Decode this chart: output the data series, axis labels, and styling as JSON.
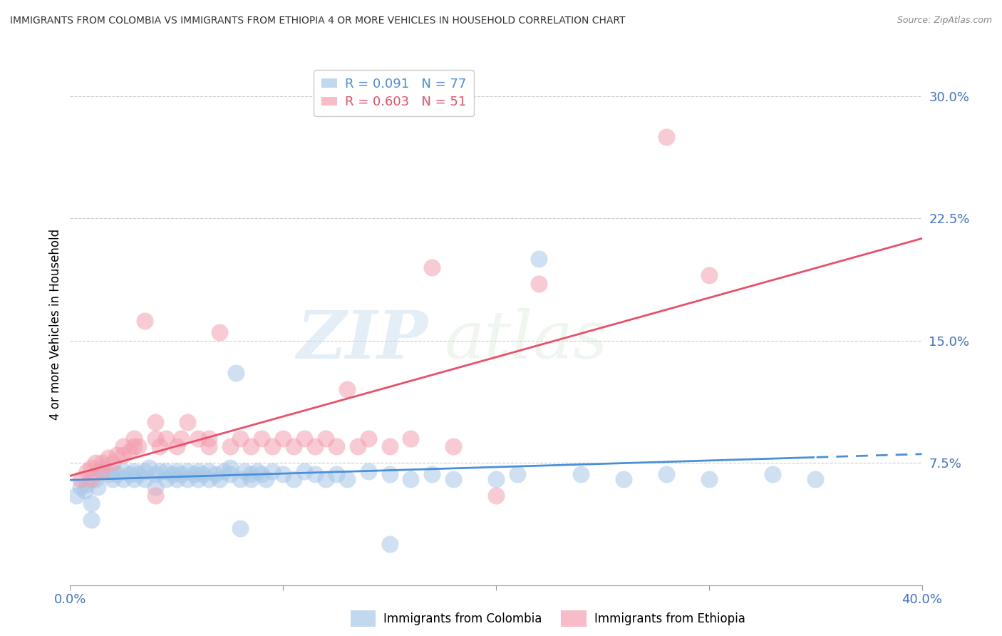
{
  "title": "IMMIGRANTS FROM COLOMBIA VS IMMIGRANTS FROM ETHIOPIA 4 OR MORE VEHICLES IN HOUSEHOLD CORRELATION CHART",
  "source": "Source: ZipAtlas.com",
  "ylabel": "4 or more Vehicles in Household",
  "xlim": [
    0.0,
    0.4
  ],
  "ylim": [
    0.0,
    0.32
  ],
  "yticks": [
    0.075,
    0.15,
    0.225,
    0.3
  ],
  "ytick_labels": [
    "7.5%",
    "15.0%",
    "22.5%",
    "30.0%"
  ],
  "xticks": [
    0.0,
    0.1,
    0.2,
    0.3,
    0.4
  ],
  "xtick_labels": [
    "0.0%",
    "",
    "",
    "",
    "40.0%"
  ],
  "colombia_R": 0.091,
  "colombia_N": 77,
  "ethiopia_R": 0.603,
  "ethiopia_N": 51,
  "colombia_color": "#a8c8e8",
  "ethiopia_color": "#f4a0b0",
  "trendline_colombia_color": "#4a90d9",
  "trendline_ethiopia_color": "#e8506a",
  "watermark_zip": "ZIP",
  "watermark_atlas": "atlas",
  "colombia_x": [
    0.003,
    0.005,
    0.007,
    0.008,
    0.01,
    0.012,
    0.013,
    0.015,
    0.015,
    0.018,
    0.02,
    0.02,
    0.022,
    0.025,
    0.025,
    0.028,
    0.03,
    0.03,
    0.032,
    0.035,
    0.035,
    0.037,
    0.04,
    0.04,
    0.042,
    0.045,
    0.045,
    0.048,
    0.05,
    0.05,
    0.052,
    0.055,
    0.055,
    0.058,
    0.06,
    0.06,
    0.062,
    0.065,
    0.065,
    0.068,
    0.07,
    0.072,
    0.075,
    0.075,
    0.078,
    0.08,
    0.082,
    0.085,
    0.085,
    0.088,
    0.09,
    0.092,
    0.095,
    0.1,
    0.105,
    0.11,
    0.115,
    0.12,
    0.125,
    0.13,
    0.14,
    0.15,
    0.16,
    0.17,
    0.18,
    0.2,
    0.21,
    0.22,
    0.24,
    0.26,
    0.28,
    0.3,
    0.33,
    0.35,
    0.01,
    0.08,
    0.15
  ],
  "colombia_y": [
    0.055,
    0.06,
    0.058,
    0.062,
    0.05,
    0.065,
    0.06,
    0.07,
    0.072,
    0.068,
    0.065,
    0.07,
    0.068,
    0.065,
    0.07,
    0.068,
    0.065,
    0.07,
    0.068,
    0.065,
    0.07,
    0.072,
    0.06,
    0.068,
    0.07,
    0.065,
    0.07,
    0.068,
    0.065,
    0.07,
    0.068,
    0.065,
    0.07,
    0.068,
    0.065,
    0.07,
    0.068,
    0.065,
    0.07,
    0.068,
    0.065,
    0.07,
    0.068,
    0.072,
    0.13,
    0.065,
    0.07,
    0.068,
    0.065,
    0.07,
    0.068,
    0.065,
    0.07,
    0.068,
    0.065,
    0.07,
    0.068,
    0.065,
    0.068,
    0.065,
    0.07,
    0.068,
    0.065,
    0.068,
    0.065,
    0.065,
    0.068,
    0.2,
    0.068,
    0.065,
    0.068,
    0.065,
    0.068,
    0.065,
    0.04,
    0.035,
    0.025
  ],
  "ethiopia_x": [
    0.005,
    0.008,
    0.01,
    0.012,
    0.015,
    0.015,
    0.018,
    0.02,
    0.022,
    0.025,
    0.025,
    0.028,
    0.03,
    0.03,
    0.032,
    0.035,
    0.04,
    0.04,
    0.042,
    0.045,
    0.05,
    0.052,
    0.055,
    0.06,
    0.065,
    0.065,
    0.07,
    0.075,
    0.08,
    0.085,
    0.09,
    0.095,
    0.1,
    0.105,
    0.11,
    0.115,
    0.12,
    0.125,
    0.13,
    0.135,
    0.14,
    0.15,
    0.16,
    0.17,
    0.18,
    0.2,
    0.22,
    0.28,
    0.3,
    0.01,
    0.04
  ],
  "ethiopia_y": [
    0.065,
    0.07,
    0.072,
    0.075,
    0.07,
    0.075,
    0.078,
    0.075,
    0.08,
    0.08,
    0.085,
    0.082,
    0.085,
    0.09,
    0.085,
    0.162,
    0.09,
    0.1,
    0.085,
    0.09,
    0.085,
    0.09,
    0.1,
    0.09,
    0.085,
    0.09,
    0.155,
    0.085,
    0.09,
    0.085,
    0.09,
    0.085,
    0.09,
    0.085,
    0.09,
    0.085,
    0.09,
    0.085,
    0.12,
    0.085,
    0.09,
    0.085,
    0.09,
    0.195,
    0.085,
    0.055,
    0.185,
    0.275,
    0.19,
    0.065,
    0.055
  ]
}
